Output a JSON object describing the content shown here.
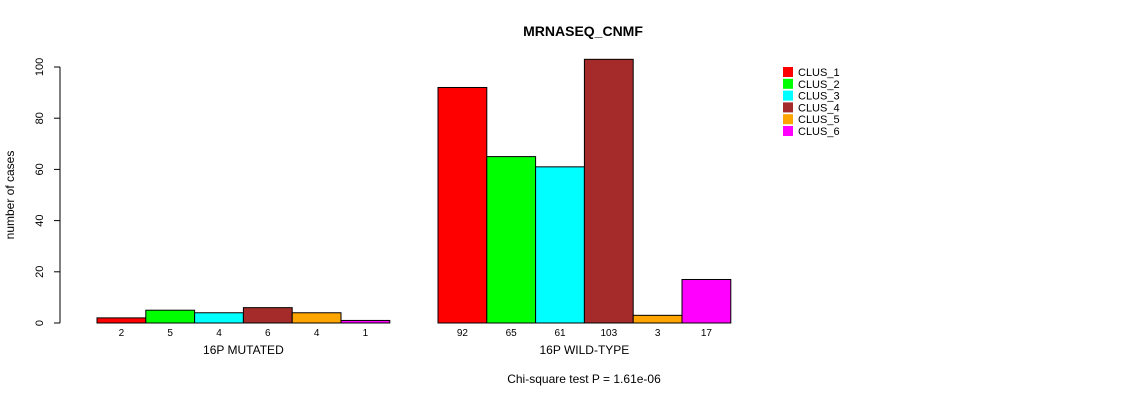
{
  "chart_data": {
    "type": "bar",
    "title": "MRNASEQ_CNMF",
    "xlabel": "",
    "ylabel": "number of cases",
    "ylim": [
      0,
      100
    ],
    "yticks": [
      0,
      20,
      40,
      60,
      80,
      100
    ],
    "groups": [
      "16P MUTATED",
      "16P WILD-TYPE"
    ],
    "series": [
      {
        "name": "CLUS_1",
        "color": "#ff0000",
        "values": [
          2,
          92
        ]
      },
      {
        "name": "CLUS_2",
        "color": "#00ff00",
        "values": [
          5,
          65
        ]
      },
      {
        "name": "CLUS_3",
        "color": "#00ffff",
        "values": [
          4,
          61
        ]
      },
      {
        "name": "CLUS_4",
        "color": "#a52a2a",
        "values": [
          6,
          103
        ]
      },
      {
        "name": "CLUS_5",
        "color": "#ffa500",
        "values": [
          4,
          3
        ]
      },
      {
        "name": "CLUS_6",
        "color": "#ff00ff",
        "values": [
          1,
          17
        ]
      }
    ],
    "legend_position": "top-right",
    "footnote": "Chi-square test P = 1.61e-06"
  }
}
